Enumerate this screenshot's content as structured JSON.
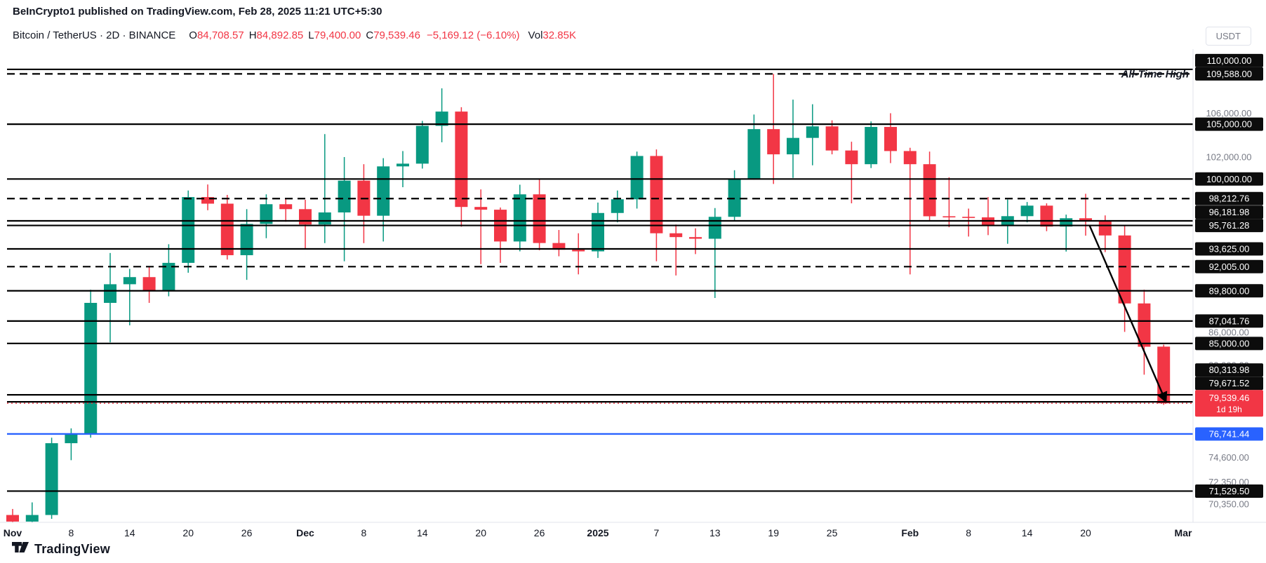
{
  "header": {
    "publisher_line": "BeInCrypto1 published on TradingView.com, Feb 28, 2025 11:21 UTC+5:30"
  },
  "symbol_bar": {
    "title": "Bitcoin / TetherUS · 2D · BINANCE",
    "ohlc": [
      {
        "label": "O",
        "value": "84,708.57"
      },
      {
        "label": "H",
        "value": "84,892.85"
      },
      {
        "label": "L",
        "value": "79,400.00"
      },
      {
        "label": "C",
        "value": "79,539.46"
      }
    ],
    "change": "−5,169.12 (−6.10%)",
    "vol_label": "Vol",
    "vol_value": "32.85K",
    "currency_button": "USDT"
  },
  "colors": {
    "up": "#089981",
    "down": "#F23645",
    "blue": "#2962FF",
    "badge": "#0C0C0C",
    "text_dark": "#131722",
    "text_gray": "#787B86",
    "border": "#E0E3EB"
  },
  "footer": {
    "brand": "TradingView"
  },
  "chart_data": {
    "type": "candlestick",
    "timeframe": "2D",
    "title": "Bitcoin / TetherUS 2D BINANCE",
    "ylim": [
      69000,
      110700
    ],
    "x_ticks": [
      [
        0,
        "Nov"
      ],
      [
        3,
        "8"
      ],
      [
        6,
        "14"
      ],
      [
        9,
        "20"
      ],
      [
        12,
        "26"
      ],
      [
        15,
        "Dec"
      ],
      [
        18,
        "8"
      ],
      [
        21,
        "14"
      ],
      [
        24,
        "20"
      ],
      [
        27,
        "26"
      ],
      [
        30,
        "2025"
      ],
      [
        33,
        "7"
      ],
      [
        36,
        "13"
      ],
      [
        39,
        "19"
      ],
      [
        42,
        "25"
      ],
      [
        46,
        "Feb"
      ],
      [
        49,
        "8"
      ],
      [
        52,
        "14"
      ],
      [
        55,
        "20"
      ],
      [
        60,
        "Mar"
      ]
    ],
    "candles": [
      [
        69350,
        69900,
        67500,
        68750
      ],
      [
        68750,
        70500,
        66900,
        69350
      ],
      [
        69350,
        76400,
        69000,
        75900
      ],
      [
        75900,
        77250,
        74350,
        76700
      ],
      [
        76700,
        89900,
        76400,
        88700
      ],
      [
        88700,
        93250,
        85100,
        90400
      ],
      [
        90400,
        91800,
        86650,
        91050
      ],
      [
        91050,
        92000,
        88700,
        89850
      ],
      [
        89850,
        94050,
        89300,
        92350
      ],
      [
        92350,
        98950,
        91450,
        98350
      ],
      [
        98350,
        99500,
        97150,
        97750
      ],
      [
        97750,
        98550,
        92650,
        93050
      ],
      [
        93050,
        97250,
        90800,
        95900
      ],
      [
        95900,
        98600,
        94600,
        97700
      ],
      [
        97700,
        98150,
        96100,
        97250
      ],
      [
        97250,
        98100,
        93650,
        95850
      ],
      [
        95850,
        104100,
        94150,
        96950
      ],
      [
        96950,
        102000,
        92500,
        99850
      ],
      [
        99850,
        101350,
        94150,
        96650
      ],
      [
        96650,
        101900,
        94300,
        101150
      ],
      [
        101150,
        102550,
        99250,
        101400
      ],
      [
        101400,
        105300,
        100950,
        104850
      ],
      [
        104850,
        108270,
        103350,
        106150
      ],
      [
        106150,
        106550,
        95650,
        97450
      ],
      [
        97450,
        99050,
        92230,
        97200
      ],
      [
        97200,
        97400,
        92350,
        94300
      ],
      [
        94300,
        99480,
        93400,
        98600
      ],
      [
        98600,
        99960,
        93500,
        94160
      ],
      [
        94160,
        95350,
        92950,
        93550
      ],
      [
        93550,
        95050,
        91300,
        93400
      ],
      [
        93400,
        97850,
        92800,
        96900
      ],
      [
        96900,
        98950,
        96050,
        98150
      ],
      [
        98150,
        102500,
        97300,
        102100
      ],
      [
        102100,
        102700,
        92500,
        95050
      ],
      [
        95050,
        95850,
        91200,
        94700
      ],
      [
        94700,
        95500,
        93150,
        94550
      ],
      [
        94550,
        97350,
        89150,
        96550
      ],
      [
        96550,
        100800,
        96150,
        100000
      ],
      [
        100000,
        105880,
        99950,
        104550
      ],
      [
        104550,
        109588,
        99550,
        102250
      ],
      [
        102250,
        107240,
        100100,
        103750
      ],
      [
        103750,
        106820,
        101250,
        104800
      ],
      [
        104800,
        105350,
        102250,
        102600
      ],
      [
        102600,
        103400,
        97780,
        101350
      ],
      [
        101350,
        105250,
        101000,
        104750
      ],
      [
        104750,
        106000,
        101450,
        102550
      ],
      [
        102550,
        102850,
        91300,
        101350
      ],
      [
        101350,
        102500,
        96150,
        96600
      ],
      [
        96600,
        100150,
        95600,
        96550
      ],
      [
        96550,
        97300,
        94750,
        96500
      ],
      [
        96500,
        98350,
        94880,
        95780
      ],
      [
        95780,
        98120,
        94090,
        96610
      ],
      [
        96610,
        97900,
        96050,
        97570
      ],
      [
        97570,
        97780,
        95240,
        95660
      ],
      [
        95660,
        96750,
        93380,
        96420
      ],
      [
        96420,
        98650,
        94830,
        96150
      ],
      [
        96150,
        96680,
        93330,
        94850
      ],
      [
        94850,
        95800,
        86050,
        88650
      ],
      [
        88650,
        89900,
        82150,
        84700
      ],
      [
        84708.57,
        84892.85,
        79400,
        79539.46
      ]
    ],
    "levels": [
      {
        "price": 110000,
        "label": "110,000.00",
        "style": "solid",
        "color": "black"
      },
      {
        "price": 109588,
        "label": "109,588.00",
        "style": "dashed",
        "color": "black"
      },
      {
        "price": 105000,
        "label": "105,000.00",
        "style": "solid",
        "color": "black"
      },
      {
        "price": 100000,
        "label": "100,000.00",
        "style": "solid",
        "color": "black"
      },
      {
        "price": 98212.76,
        "label": "98,212.76",
        "style": "dashed",
        "color": "black"
      },
      {
        "price": 96181.98,
        "label": "96,181.98",
        "style": "solid",
        "color": "black"
      },
      {
        "price": 95761.28,
        "label": "95,761.28",
        "style": "solid",
        "color": "black"
      },
      {
        "price": 93625,
        "label": "93,625.00",
        "style": "solid",
        "color": "black"
      },
      {
        "price": 92005,
        "label": "92,005.00",
        "style": "dashed",
        "color": "black"
      },
      {
        "price": 89800,
        "label": "89,800.00",
        "style": "solid",
        "color": "black"
      },
      {
        "price": 87041.76,
        "label": "87,041.76",
        "style": "solid",
        "color": "black"
      },
      {
        "price": 85000,
        "label": "85,000.00",
        "style": "solid",
        "color": "black"
      },
      {
        "price": 80313.98,
        "label": "80,313.98",
        "style": "solid",
        "color": "black"
      },
      {
        "price": 79671.52,
        "label": "79,671.52",
        "style": "solid",
        "color": "black"
      },
      {
        "price": 76741.44,
        "label": "76,741.44",
        "style": "solid",
        "color": "blue"
      },
      {
        "price": 71529.5,
        "label": "71,529.50",
        "style": "solid",
        "color": "black"
      }
    ],
    "scale_ticks": [
      {
        "price": 106000,
        "label": "106,000.00"
      },
      {
        "price": 102000,
        "label": "102,000.00"
      },
      {
        "price": 86000,
        "label": "86,000.00"
      },
      {
        "price": 83000,
        "label": "83,000.00"
      },
      {
        "price": 74600,
        "label": "74,600.00"
      },
      {
        "price": 72350,
        "label": "72,350.00"
      },
      {
        "price": 70350,
        "label": "70,350.00"
      }
    ],
    "current_price": {
      "value": 79539.46,
      "label": "79,539.46",
      "countdown": "1d 19h"
    },
    "annotation": {
      "text": "All-Time High",
      "price": 109588
    },
    "trendline": {
      "from_index": 55.2,
      "from_price": 95761,
      "to_index": 59.1,
      "to_price": 79750
    }
  }
}
